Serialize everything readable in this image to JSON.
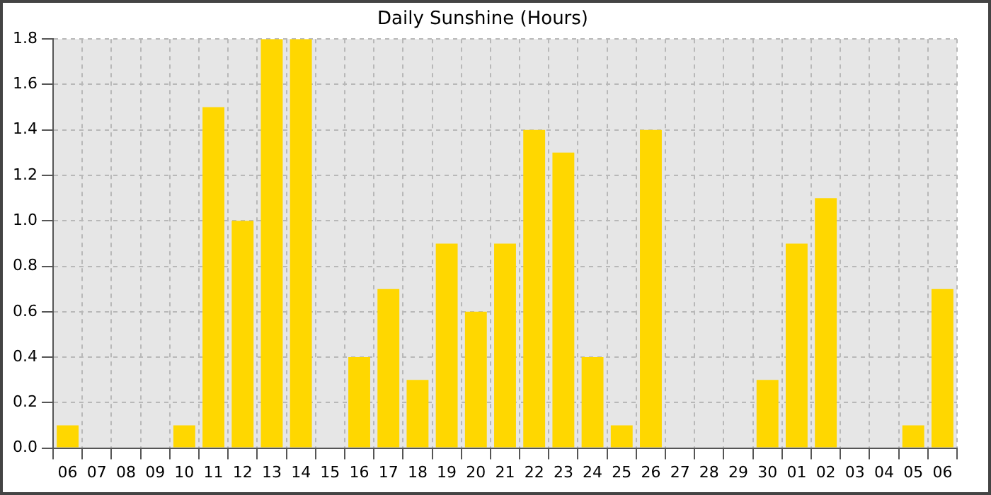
{
  "chart_data": {
    "type": "bar",
    "title": "Daily Sunshine (Hours)",
    "categories": [
      "06",
      "07",
      "08",
      "09",
      "10",
      "11",
      "12",
      "13",
      "14",
      "15",
      "16",
      "17",
      "18",
      "19",
      "20",
      "21",
      "22",
      "23",
      "24",
      "25",
      "26",
      "27",
      "28",
      "29",
      "30",
      "01",
      "02",
      "03",
      "04",
      "05",
      "06"
    ],
    "values": [
      0.1,
      0,
      0,
      0,
      0.1,
      1.5,
      1.0,
      1.8,
      1.8,
      0,
      0.4,
      0.7,
      0.3,
      0.9,
      0.6,
      0.9,
      1.4,
      1.3,
      0.4,
      0.1,
      1.4,
      0,
      0,
      0,
      0.3,
      0.9,
      1.1,
      0,
      0,
      0.1,
      0.7
    ],
    "color": "#ffd700",
    "ylim": [
      0,
      1.8
    ],
    "yticks": [
      {
        "value": 0,
        "label": "0.0"
      },
      {
        "value": 0.2,
        "label": "0.2"
      },
      {
        "value": 0.4,
        "label": "0.4"
      },
      {
        "value": 0.6,
        "label": "0.6"
      },
      {
        "value": 0.8,
        "label": "0.8"
      },
      {
        "value": 1.0,
        "label": "1.0"
      },
      {
        "value": 1.2,
        "label": "1.2"
      },
      {
        "value": 1.4,
        "label": "1.4"
      },
      {
        "value": 1.6,
        "label": "1.6"
      },
      {
        "value": 1.8,
        "label": "1.8"
      }
    ],
    "grid": true
  }
}
